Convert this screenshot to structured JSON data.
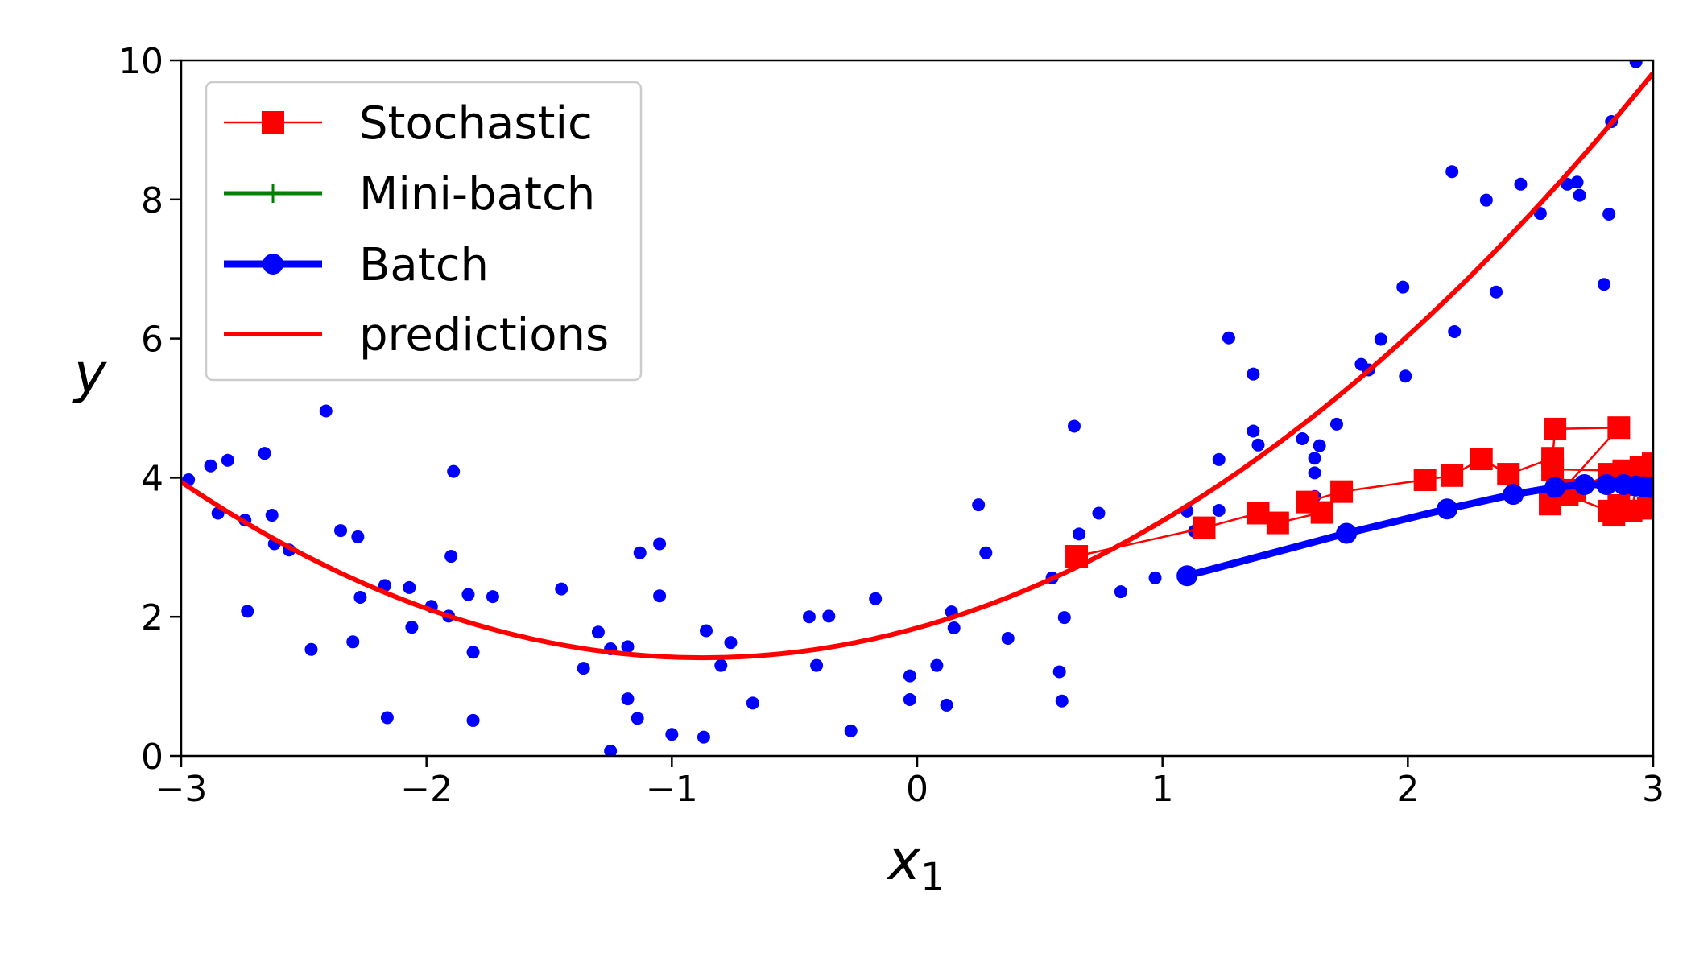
{
  "chart_data": {
    "type": "scatter",
    "title": "",
    "xlabel_main": "x",
    "xlabel_sub": "1",
    "ylabel": "y",
    "xlim": [
      -3,
      3
    ],
    "ylim": [
      0,
      10
    ],
    "xticks": [
      -3,
      -2,
      -1,
      0,
      1,
      2,
      3
    ],
    "xtick_labels": [
      "−3",
      "−2",
      "−1",
      "0",
      "1",
      "2",
      "3"
    ],
    "yticks": [
      0,
      2,
      4,
      6,
      8,
      10
    ],
    "ytick_labels": [
      "0",
      "2",
      "4",
      "6",
      "8",
      "10"
    ],
    "grid": false,
    "legend_position": "top-left",
    "colors": {
      "stochastic": "#ff0000",
      "minibatch": "#008000",
      "batch": "#0000ff",
      "predictions": "#ff0000",
      "data": "#0000ff"
    },
    "legend": [
      {
        "label": "Stochastic",
        "marker": "square"
      },
      {
        "label": "Mini-batch",
        "marker": "plus"
      },
      {
        "label": "Batch",
        "marker": "circle"
      },
      {
        "label": "predictions",
        "marker": "none"
      }
    ],
    "scatter_points": [
      [
        -2.97,
        3.97
      ],
      [
        -2.88,
        4.17
      ],
      [
        -2.85,
        3.49
      ],
      [
        -2.81,
        4.25
      ],
      [
        -2.74,
        3.39
      ],
      [
        -2.73,
        2.08
      ],
      [
        -2.66,
        4.35
      ],
      [
        -2.63,
        3.46
      ],
      [
        -2.62,
        3.05
      ],
      [
        -2.56,
        2.96
      ],
      [
        -2.47,
        1.53
      ],
      [
        -2.41,
        4.96
      ],
      [
        -2.35,
        3.24
      ],
      [
        -2.3,
        1.64
      ],
      [
        -2.28,
        3.15
      ],
      [
        -2.27,
        2.28
      ],
      [
        -2.17,
        2.45
      ],
      [
        -2.16,
        0.55
      ],
      [
        -2.07,
        2.42
      ],
      [
        -2.06,
        1.85
      ],
      [
        -1.98,
        2.15
      ],
      [
        -1.91,
        2.01
      ],
      [
        -1.9,
        2.87
      ],
      [
        -1.89,
        4.09
      ],
      [
        -1.83,
        2.32
      ],
      [
        -1.81,
        1.49
      ],
      [
        -1.81,
        0.51
      ],
      [
        -1.73,
        2.29
      ],
      [
        -1.45,
        2.4
      ],
      [
        -1.36,
        1.26
      ],
      [
        -1.3,
        1.78
      ],
      [
        -1.25,
        0.07
      ],
      [
        -1.25,
        1.54
      ],
      [
        -1.18,
        1.57
      ],
      [
        -1.18,
        0.82
      ],
      [
        -1.14,
        0.54
      ],
      [
        -1.13,
        2.92
      ],
      [
        -1.05,
        3.05
      ],
      [
        -1.05,
        2.3
      ],
      [
        -1.0,
        0.31
      ],
      [
        -0.87,
        0.27
      ],
      [
        -0.86,
        1.8
      ],
      [
        -0.8,
        1.3
      ],
      [
        -0.76,
        1.63
      ],
      [
        -0.67,
        0.76
      ],
      [
        -0.44,
        2.0
      ],
      [
        -0.41,
        1.3
      ],
      [
        -0.36,
        2.01
      ],
      [
        -0.27,
        0.36
      ],
      [
        -0.17,
        2.26
      ],
      [
        -0.03,
        1.15
      ],
      [
        -0.03,
        0.81
      ],
      [
        0.08,
        1.3
      ],
      [
        0.12,
        0.73
      ],
      [
        0.14,
        2.07
      ],
      [
        0.15,
        1.84
      ],
      [
        0.25,
        3.61
      ],
      [
        0.28,
        2.92
      ],
      [
        0.37,
        1.69
      ],
      [
        0.55,
        2.56
      ],
      [
        0.58,
        1.21
      ],
      [
        0.59,
        0.79
      ],
      [
        0.6,
        1.99
      ],
      [
        0.64,
        4.74
      ],
      [
        0.66,
        3.19
      ],
      [
        0.74,
        3.49
      ],
      [
        0.83,
        2.36
      ],
      [
        0.97,
        2.56
      ],
      [
        1.1,
        3.52
      ],
      [
        1.13,
        3.23
      ],
      [
        1.23,
        4.26
      ],
      [
        1.23,
        3.53
      ],
      [
        1.27,
        6.01
      ],
      [
        1.37,
        5.49
      ],
      [
        1.37,
        4.67
      ],
      [
        1.39,
        4.47
      ],
      [
        1.57,
        4.56
      ],
      [
        1.62,
        4.28
      ],
      [
        1.62,
        4.07
      ],
      [
        1.64,
        4.46
      ],
      [
        1.62,
        3.73
      ],
      [
        1.71,
        4.77
      ],
      [
        1.81,
        5.63
      ],
      [
        1.84,
        5.55
      ],
      [
        1.89,
        5.99
      ],
      [
        1.98,
        6.74
      ],
      [
        1.99,
        5.46
      ],
      [
        2.18,
        8.4
      ],
      [
        2.19,
        6.1
      ],
      [
        2.32,
        7.99
      ],
      [
        2.36,
        6.67
      ],
      [
        2.46,
        8.22
      ],
      [
        2.54,
        7.8
      ],
      [
        2.65,
        8.22
      ],
      [
        2.69,
        8.25
      ],
      [
        2.7,
        8.06
      ],
      [
        2.8,
        6.78
      ],
      [
        2.82,
        7.79
      ],
      [
        2.83,
        9.12
      ],
      [
        2.93,
        9.98
      ]
    ],
    "predictions": {
      "a": 0.56,
      "b": 0.98,
      "c": 1.84
    },
    "stochastic_path": [
      [
        0.65,
        2.87
      ],
      [
        1.17,
        3.28
      ],
      [
        1.39,
        3.49
      ],
      [
        1.47,
        3.35
      ],
      [
        1.65,
        3.5
      ],
      [
        1.59,
        3.65
      ],
      [
        1.73,
        3.8
      ],
      [
        2.07,
        3.97
      ],
      [
        2.18,
        4.03
      ],
      [
        2.3,
        4.27
      ],
      [
        2.41,
        4.05
      ],
      [
        2.59,
        4.28
      ],
      [
        2.6,
        4.7
      ],
      [
        2.86,
        4.72
      ],
      [
        2.58,
        3.62
      ],
      [
        2.65,
        3.75
      ],
      [
        2.82,
        3.52
      ],
      [
        2.84,
        3.46
      ],
      [
        2.91,
        3.52
      ],
      [
        2.95,
        4.15
      ],
      [
        2.98,
        3.56
      ],
      [
        2.88,
        4.1
      ],
      [
        2.59,
        4.12
      ],
      [
        2.68,
        3.82
      ],
      [
        2.82,
        4.05
      ],
      [
        2.93,
        3.9
      ],
      [
        2.86,
        3.6
      ],
      [
        3.0,
        4.2
      ]
    ],
    "batch_path": [
      [
        1.1,
        2.59
      ],
      [
        1.75,
        3.2
      ],
      [
        2.16,
        3.55
      ],
      [
        2.43,
        3.76
      ],
      [
        2.6,
        3.86
      ],
      [
        2.72,
        3.9
      ],
      [
        2.81,
        3.9
      ],
      [
        2.88,
        3.9
      ],
      [
        2.93,
        3.88
      ],
      [
        2.96,
        3.87
      ],
      [
        2.99,
        3.86
      ]
    ]
  }
}
